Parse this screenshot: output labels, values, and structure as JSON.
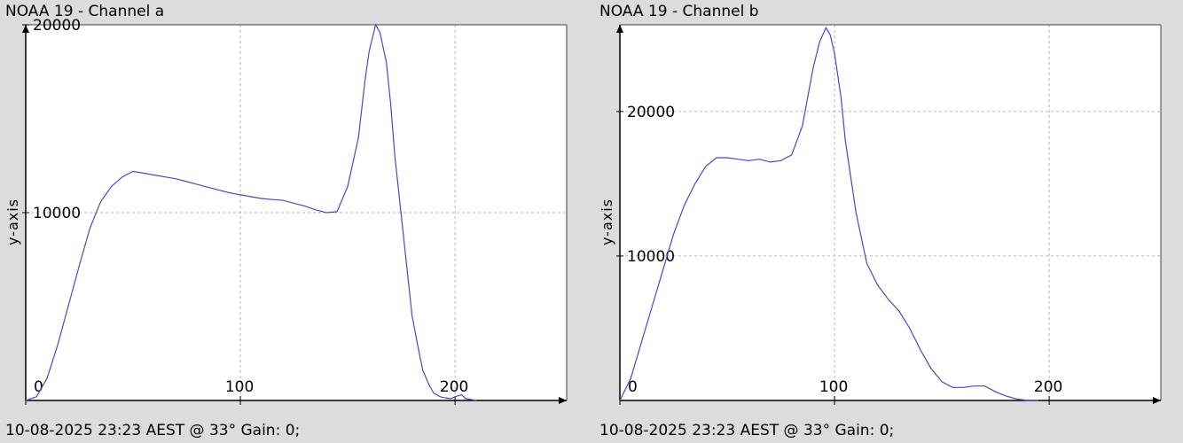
{
  "chart_data": [
    {
      "type": "line",
      "title": "NOAA 19 - Channel a",
      "ylabel": "y-axis",
      "footer": "10-08-2025 23:23 AEST @ 33° Gain: 0;",
      "xlim": [
        0,
        252
      ],
      "ylim": [
        0,
        20000
      ],
      "xticks": [
        0,
        100,
        200
      ],
      "yticks": [
        10000,
        20000
      ],
      "grid": true,
      "line_color": "#4848c8",
      "series": [
        {
          "x": [
            0,
            5,
            10,
            15,
            20,
            25,
            30,
            35,
            40,
            45,
            50,
            55,
            60,
            65,
            70,
            75,
            80,
            85,
            90,
            95,
            100,
            105,
            110,
            115,
            120,
            125,
            130,
            135,
            140,
            145,
            150,
            155,
            158,
            160,
            163,
            165,
            168,
            170,
            172,
            175,
            178,
            180,
            183,
            185,
            188,
            190,
            193,
            195,
            198,
            200,
            203,
            205,
            210
          ],
          "values": [
            0,
            200,
            1200,
            3000,
            5100,
            7200,
            9200,
            10600,
            11400,
            11900,
            12200,
            12100,
            12000,
            11900,
            11800,
            11650,
            11500,
            11350,
            11200,
            11050,
            10950,
            10850,
            10750,
            10700,
            10650,
            10500,
            10350,
            10150,
            10000,
            10050,
            11400,
            14000,
            17000,
            18600,
            20000,
            19600,
            18000,
            15800,
            13000,
            9800,
            6600,
            4500,
            2700,
            1600,
            800,
            400,
            200,
            150,
            100,
            200,
            300,
            100,
            0
          ]
        }
      ]
    },
    {
      "type": "line",
      "title": "NOAA 19 - Channel b",
      "ylabel": "y-axis",
      "footer": "10-08-2025 23:23 AEST @ 33° Gain: 0;",
      "xlim": [
        0,
        252
      ],
      "ylim": [
        0,
        26000
      ],
      "xticks": [
        0,
        100,
        200
      ],
      "yticks": [
        10000,
        20000
      ],
      "grid": true,
      "line_color": "#4848c8",
      "series": [
        {
          "x": [
            0,
            5,
            10,
            15,
            20,
            25,
            30,
            35,
            40,
            45,
            50,
            55,
            60,
            65,
            70,
            75,
            80,
            85,
            90,
            93,
            96,
            98,
            100,
            103,
            105,
            110,
            115,
            120,
            125,
            130,
            135,
            140,
            145,
            150,
            155,
            160,
            165,
            170,
            175,
            180,
            185,
            190,
            195
          ],
          "values": [
            0,
            1500,
            4000,
            6500,
            9000,
            11500,
            13500,
            15000,
            16200,
            16800,
            16800,
            16700,
            16600,
            16700,
            16500,
            16600,
            17000,
            19000,
            23000,
            24800,
            25800,
            25300,
            24000,
            21000,
            18000,
            13000,
            9500,
            8000,
            7000,
            6200,
            5000,
            3500,
            2200,
            1300,
            900,
            900,
            1000,
            1000,
            600,
            300,
            100,
            0,
            0
          ]
        }
      ]
    }
  ]
}
